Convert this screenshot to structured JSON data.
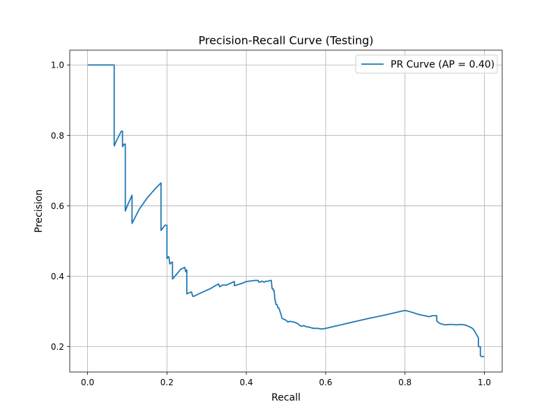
{
  "chart_data": {
    "type": "line",
    "title": "Precision-Recall Curve (Testing)",
    "xlabel": "Recall",
    "ylabel": "Precision",
    "xlim": [
      -0.045,
      1.045
    ],
    "ylim": [
      0.128,
      1.042
    ],
    "xticks": [
      0.0,
      0.2,
      0.4,
      0.6,
      0.8,
      1.0
    ],
    "xtick_labels": [
      "0.0",
      "0.2",
      "0.4",
      "0.6",
      "0.8",
      "1.0"
    ],
    "yticks": [
      0.2,
      0.4,
      0.6,
      0.8,
      1.0
    ],
    "ytick_labels": [
      "0.2",
      "0.4",
      "0.6",
      "0.8",
      "1.0"
    ],
    "grid": true,
    "legend_position": "top-right",
    "series": [
      {
        "name": "PR Curve (AP = 0.40)",
        "color": "#1f77b4",
        "x": [
          0.0,
          0.067,
          0.067,
          0.067,
          0.075,
          0.085,
          0.088,
          0.088,
          0.092,
          0.092,
          0.095,
          0.095,
          0.1,
          0.112,
          0.112,
          0.13,
          0.15,
          0.17,
          0.185,
          0.185,
          0.195,
          0.2,
          0.2,
          0.203,
          0.205,
          0.207,
          0.208,
          0.212,
          0.214,
          0.214,
          0.22,
          0.235,
          0.245,
          0.247,
          0.25,
          0.25,
          0.26,
          0.262,
          0.265,
          0.268,
          0.28,
          0.29,
          0.3,
          0.31,
          0.32,
          0.33,
          0.333,
          0.34,
          0.35,
          0.36,
          0.37,
          0.37,
          0.39,
          0.4,
          0.42,
          0.43,
          0.432,
          0.44,
          0.445,
          0.45,
          0.455,
          0.46,
          0.463,
          0.465,
          0.467,
          0.468,
          0.47,
          0.472,
          0.475,
          0.477,
          0.48,
          0.482,
          0.485,
          0.488,
          0.49,
          0.495,
          0.5,
          0.505,
          0.51,
          0.52,
          0.53,
          0.535,
          0.54,
          0.545,
          0.55,
          0.56,
          0.565,
          0.57,
          0.58,
          0.59,
          0.6,
          0.65,
          0.7,
          0.75,
          0.8,
          0.81,
          0.82,
          0.83,
          0.84,
          0.85,
          0.86,
          0.87,
          0.875,
          0.88,
          0.88,
          0.885,
          0.89,
          0.9,
          0.91,
          0.92,
          0.93,
          0.94,
          0.95,
          0.955,
          0.96,
          0.965,
          0.97,
          0.975,
          0.98,
          0.985,
          0.985,
          0.99,
          0.99,
          0.992,
          1.0,
          1.0
        ],
        "y": [
          1.0,
          1.0,
          0.77,
          0.77,
          0.79,
          0.812,
          0.812,
          0.768,
          0.775,
          0.775,
          0.775,
          0.585,
          0.6,
          0.63,
          0.55,
          0.59,
          0.622,
          0.648,
          0.665,
          0.53,
          0.545,
          0.545,
          0.45,
          0.455,
          0.455,
          0.435,
          0.435,
          0.44,
          0.44,
          0.392,
          0.4,
          0.42,
          0.425,
          0.413,
          0.418,
          0.35,
          0.355,
          0.355,
          0.343,
          0.343,
          0.35,
          0.355,
          0.36,
          0.365,
          0.372,
          0.378,
          0.37,
          0.375,
          0.375,
          0.38,
          0.385,
          0.373,
          0.38,
          0.385,
          0.388,
          0.388,
          0.383,
          0.386,
          0.383,
          0.386,
          0.386,
          0.388,
          0.388,
          0.365,
          0.365,
          0.36,
          0.36,
          0.335,
          0.32,
          0.32,
          0.31,
          0.31,
          0.3,
          0.29,
          0.28,
          0.278,
          0.275,
          0.27,
          0.272,
          0.27,
          0.265,
          0.26,
          0.258,
          0.26,
          0.257,
          0.255,
          0.253,
          0.252,
          0.252,
          0.25,
          0.252,
          0.265,
          0.278,
          0.29,
          0.303,
          0.3,
          0.297,
          0.293,
          0.29,
          0.288,
          0.285,
          0.288,
          0.288,
          0.288,
          0.273,
          0.268,
          0.265,
          0.262,
          0.263,
          0.263,
          0.262,
          0.263,
          0.262,
          0.26,
          0.258,
          0.255,
          0.252,
          0.245,
          0.235,
          0.225,
          0.2,
          0.2,
          0.175,
          0.172,
          0.172,
          0.172
        ]
      }
    ]
  }
}
